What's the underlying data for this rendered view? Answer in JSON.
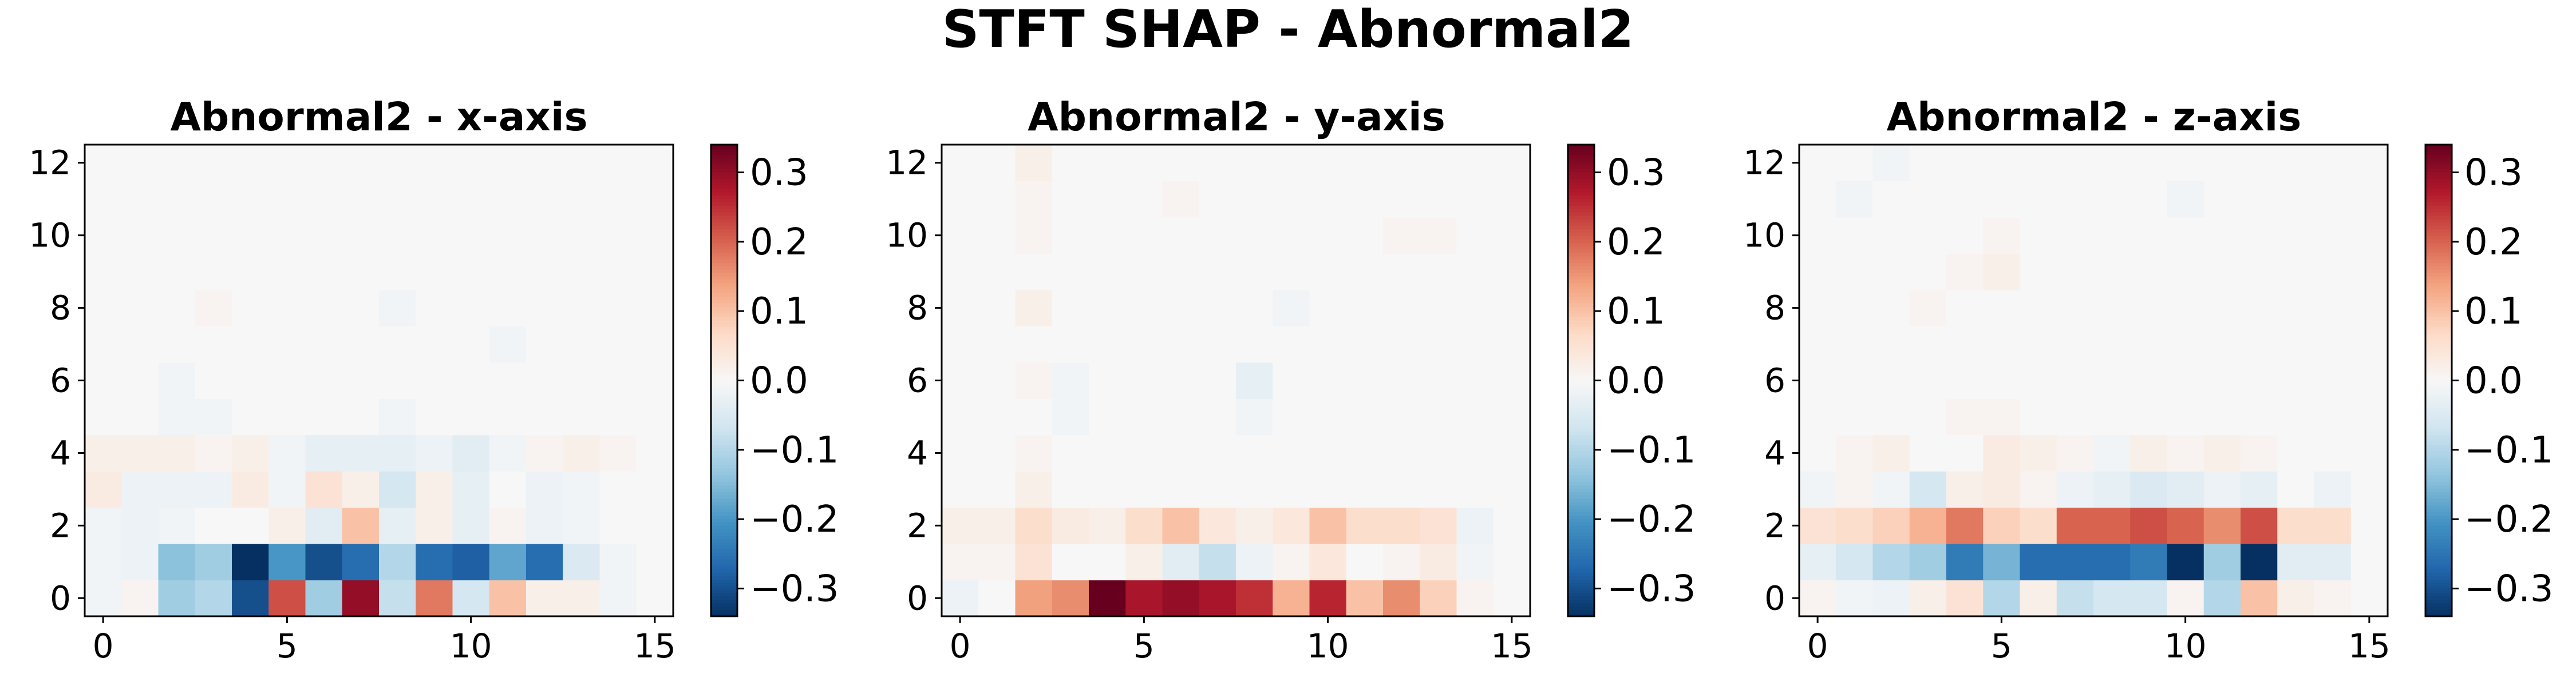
{
  "figure": {
    "title": "STFT SHAP - Abnormal2"
  },
  "colormap": {
    "name": "RdBu_r",
    "stops": [
      "#053061",
      "#2166ac",
      "#4393c3",
      "#92c5de",
      "#d1e5f0",
      "#f7f7f7",
      "#fddbc7",
      "#f4a582",
      "#d6604d",
      "#b2182b",
      "#67001f"
    ]
  },
  "chart_data": [
    {
      "type": "heatmap",
      "title": "Abnormal2 - x-axis",
      "xlabel": "",
      "ylabel": "",
      "x_ticks": [
        0,
        5,
        10,
        15
      ],
      "y_ticks": [
        0,
        2,
        4,
        6,
        8,
        10,
        12
      ],
      "xlim": [
        -0.5,
        15.5
      ],
      "ylim": [
        -0.5,
        12.5
      ],
      "colorbar": {
        "vmin": -0.34,
        "vmax": 0.34,
        "ticks": [
          -0.3,
          -0.2,
          -0.1,
          0.0,
          0.1,
          0.2,
          0.3
        ],
        "tick_labels": [
          "−0.3",
          "−0.2",
          "−0.1",
          "0.0",
          "0.1",
          "0.2",
          "0.3"
        ]
      },
      "values": [
        [
          -0.01,
          0.01,
          -0.12,
          -0.1,
          -0.3,
          0.22,
          -0.12,
          0.3,
          -0.08,
          0.18,
          -0.06,
          0.1,
          0.02,
          0.02,
          -0.01,
          0.0
        ],
        [
          -0.01,
          -0.02,
          -0.14,
          -0.12,
          -0.34,
          -0.2,
          -0.3,
          -0.26,
          -0.1,
          -0.26,
          -0.28,
          -0.18,
          -0.26,
          -0.05,
          -0.01,
          0.0
        ],
        [
          -0.01,
          -0.02,
          -0.01,
          0.0,
          0.0,
          0.02,
          -0.04,
          0.1,
          -0.03,
          0.02,
          -0.03,
          0.01,
          -0.02,
          -0.01,
          0.0,
          0.0
        ],
        [
          0.03,
          -0.02,
          -0.02,
          -0.02,
          0.03,
          -0.01,
          0.05,
          0.02,
          -0.06,
          0.02,
          -0.03,
          0.0,
          -0.02,
          -0.01,
          0.0,
          0.0
        ],
        [
          0.02,
          0.02,
          0.02,
          0.01,
          0.02,
          -0.01,
          -0.03,
          -0.03,
          -0.03,
          -0.02,
          -0.04,
          -0.01,
          0.01,
          0.02,
          0.01,
          0.0
        ],
        [
          0.0,
          0.0,
          -0.01,
          -0.01,
          0.0,
          0.0,
          0.0,
          0.0,
          -0.01,
          0.0,
          0.0,
          0.0,
          0.0,
          0.0,
          0.0,
          0.0
        ],
        [
          0.0,
          0.0,
          -0.01,
          0.0,
          0.0,
          0.0,
          0.0,
          0.0,
          0.0,
          0.0,
          0.0,
          0.0,
          0.0,
          0.0,
          0.0,
          0.0
        ],
        [
          0.0,
          0.0,
          0.0,
          0.0,
          0.0,
          0.0,
          0.0,
          0.0,
          0.0,
          0.0,
          0.0,
          -0.01,
          0.0,
          0.0,
          0.0,
          0.0
        ],
        [
          0.0,
          0.0,
          0.0,
          0.01,
          0.0,
          0.0,
          0.0,
          0.0,
          -0.01,
          0.0,
          0.0,
          0.0,
          0.0,
          0.0,
          0.0,
          0.0
        ],
        [
          0.0,
          0.0,
          0.0,
          0.0,
          0.0,
          0.0,
          0.0,
          0.0,
          0.0,
          0.0,
          0.0,
          0.0,
          0.0,
          0.0,
          0.0,
          0.0
        ],
        [
          0.0,
          0.0,
          0.0,
          0.0,
          0.0,
          0.0,
          0.0,
          0.0,
          0.0,
          0.0,
          0.0,
          0.0,
          0.0,
          0.0,
          0.0,
          0.0
        ],
        [
          0.0,
          0.0,
          0.0,
          0.0,
          0.0,
          0.0,
          0.0,
          0.0,
          0.0,
          0.0,
          0.0,
          0.0,
          0.0,
          0.0,
          0.0,
          0.0
        ],
        [
          0.0,
          0.0,
          0.0,
          0.0,
          0.0,
          0.0,
          0.0,
          0.0,
          0.0,
          0.0,
          0.0,
          0.0,
          0.0,
          0.0,
          0.0,
          0.0
        ]
      ]
    },
    {
      "type": "heatmap",
      "title": "Abnormal2 - y-axis",
      "xlabel": "",
      "ylabel": "",
      "x_ticks": [
        0,
        5,
        10,
        15
      ],
      "y_ticks": [
        0,
        2,
        4,
        6,
        8,
        10,
        12
      ],
      "xlim": [
        -0.5,
        15.5
      ],
      "ylim": [
        -0.5,
        12.5
      ],
      "colorbar": {
        "vmin": -0.34,
        "vmax": 0.34,
        "ticks": [
          -0.3,
          -0.2,
          -0.1,
          0.0,
          0.1,
          0.2,
          0.3
        ],
        "tick_labels": [
          "−0.3",
          "−0.2",
          "−0.1",
          "0.0",
          "0.1",
          "0.2",
          "0.3"
        ]
      },
      "values": [
        [
          -0.02,
          0.0,
          0.14,
          0.16,
          0.34,
          0.28,
          0.3,
          0.28,
          0.25,
          0.12,
          0.26,
          0.1,
          0.16,
          0.08,
          0.01,
          0.0
        ],
        [
          0.01,
          0.01,
          0.05,
          0.0,
          0.0,
          0.02,
          -0.04,
          -0.08,
          -0.02,
          0.01,
          0.04,
          0.0,
          0.01,
          0.03,
          -0.01,
          0.0
        ],
        [
          0.02,
          0.02,
          0.06,
          0.03,
          0.02,
          0.06,
          0.1,
          0.04,
          0.02,
          0.04,
          0.1,
          0.06,
          0.06,
          0.05,
          -0.02,
          0.0
        ],
        [
          0.0,
          0.0,
          0.02,
          0.0,
          0.0,
          0.0,
          0.0,
          0.0,
          0.0,
          0.0,
          0.0,
          0.0,
          0.0,
          0.0,
          0.0,
          0.0
        ],
        [
          0.0,
          0.0,
          0.01,
          0.0,
          0.0,
          0.0,
          0.0,
          0.0,
          0.0,
          0.0,
          0.0,
          0.0,
          0.0,
          0.0,
          0.0,
          0.0
        ],
        [
          0.0,
          0.0,
          0.0,
          -0.01,
          0.0,
          0.0,
          0.0,
          0.0,
          -0.01,
          0.0,
          0.0,
          0.0,
          0.0,
          0.0,
          0.0,
          0.0
        ],
        [
          0.0,
          0.0,
          0.01,
          -0.01,
          0.0,
          0.0,
          0.0,
          0.0,
          -0.03,
          0.0,
          0.0,
          0.0,
          0.0,
          0.0,
          0.0,
          0.0
        ],
        [
          0.0,
          0.0,
          0.0,
          0.0,
          0.0,
          0.0,
          0.0,
          0.0,
          0.0,
          0.0,
          0.0,
          0.0,
          0.0,
          0.0,
          0.0,
          0.0
        ],
        [
          0.0,
          0.0,
          0.02,
          0.0,
          0.0,
          0.0,
          0.0,
          0.0,
          0.0,
          -0.01,
          0.0,
          0.0,
          0.0,
          0.0,
          0.0,
          0.0
        ],
        [
          0.0,
          0.0,
          0.0,
          0.0,
          0.0,
          0.0,
          0.0,
          0.0,
          0.0,
          0.0,
          0.0,
          0.0,
          0.0,
          0.0,
          0.0,
          0.0
        ],
        [
          0.0,
          0.0,
          0.01,
          0.0,
          0.0,
          0.0,
          0.0,
          0.0,
          0.0,
          0.0,
          0.0,
          0.0,
          0.01,
          0.01,
          0.0,
          0.0
        ],
        [
          0.0,
          0.0,
          0.01,
          0.0,
          0.0,
          0.0,
          0.01,
          0.0,
          0.0,
          0.0,
          0.0,
          0.0,
          0.0,
          0.0,
          0.0,
          0.0
        ],
        [
          0.0,
          0.0,
          0.02,
          0.0,
          0.0,
          0.0,
          0.0,
          0.0,
          0.0,
          0.0,
          0.0,
          0.0,
          0.0,
          0.0,
          0.0,
          0.0
        ]
      ]
    },
    {
      "type": "heatmap",
      "title": "Abnormal2 - z-axis",
      "xlabel": "",
      "ylabel": "",
      "x_ticks": [
        0,
        5,
        10,
        15
      ],
      "y_ticks": [
        0,
        2,
        4,
        6,
        8,
        10,
        12
      ],
      "xlim": [
        -0.5,
        15.5
      ],
      "ylim": [
        -0.5,
        12.5
      ],
      "colorbar": {
        "vmin": -0.34,
        "vmax": 0.34,
        "ticks": [
          -0.3,
          -0.2,
          -0.1,
          0.0,
          0.1,
          0.2,
          0.3
        ],
        "tick_labels": [
          "−0.3",
          "−0.2",
          "−0.1",
          "0.0",
          "0.1",
          "0.2",
          "0.3"
        ]
      },
      "values": [
        [
          0.01,
          -0.01,
          -0.02,
          0.02,
          0.05,
          -0.1,
          0.02,
          -0.08,
          -0.06,
          -0.06,
          0.01,
          -0.1,
          0.1,
          0.02,
          0.01,
          0.0
        ],
        [
          -0.03,
          -0.06,
          -0.1,
          -0.12,
          -0.24,
          -0.16,
          -0.26,
          -0.26,
          -0.26,
          -0.24,
          -0.34,
          -0.12,
          -0.34,
          -0.04,
          -0.04,
          0.0
        ],
        [
          0.05,
          0.06,
          0.08,
          0.12,
          0.18,
          0.08,
          0.06,
          0.2,
          0.2,
          0.22,
          0.2,
          0.16,
          0.22,
          0.06,
          0.06,
          0.0
        ],
        [
          -0.01,
          0.01,
          -0.01,
          -0.06,
          0.02,
          0.03,
          0.01,
          -0.02,
          -0.03,
          -0.05,
          -0.04,
          -0.02,
          -0.03,
          0.0,
          -0.02,
          0.0
        ],
        [
          0.0,
          0.01,
          0.02,
          0.0,
          0.0,
          0.03,
          0.02,
          0.01,
          -0.01,
          0.02,
          0.01,
          0.02,
          0.01,
          0.0,
          0.0,
          0.0
        ],
        [
          0.0,
          0.0,
          0.0,
          0.0,
          0.01,
          0.01,
          0.0,
          0.0,
          0.0,
          0.0,
          0.0,
          0.0,
          0.0,
          0.0,
          0.0,
          0.0
        ],
        [
          0.0,
          0.0,
          0.0,
          0.0,
          0.0,
          0.0,
          0.0,
          0.0,
          0.0,
          0.0,
          0.0,
          0.0,
          0.0,
          0.0,
          0.0,
          0.0
        ],
        [
          0.0,
          0.0,
          0.0,
          0.0,
          0.0,
          0.0,
          0.0,
          0.0,
          0.0,
          0.0,
          0.0,
          0.0,
          0.0,
          0.0,
          0.0,
          0.0
        ],
        [
          0.0,
          0.0,
          0.0,
          0.01,
          0.0,
          0.0,
          0.0,
          0.0,
          0.0,
          0.0,
          0.0,
          0.0,
          0.0,
          0.0,
          0.0,
          0.0
        ],
        [
          0.0,
          0.0,
          0.0,
          0.0,
          0.01,
          0.02,
          0.0,
          0.0,
          0.0,
          0.0,
          0.0,
          0.0,
          0.0,
          0.0,
          0.0,
          0.0
        ],
        [
          0.0,
          0.0,
          0.0,
          0.0,
          0.0,
          0.01,
          0.0,
          0.0,
          0.0,
          0.0,
          0.0,
          0.0,
          0.0,
          0.0,
          0.0,
          0.0
        ],
        [
          0.0,
          -0.01,
          0.0,
          0.0,
          0.0,
          0.0,
          0.0,
          0.0,
          0.0,
          0.0,
          -0.01,
          0.0,
          0.0,
          0.0,
          0.0,
          0.0
        ],
        [
          0.0,
          0.0,
          -0.01,
          0.0,
          0.0,
          0.0,
          0.0,
          0.0,
          0.0,
          0.0,
          0.0,
          0.0,
          0.0,
          0.0,
          0.0,
          0.0
        ]
      ]
    }
  ]
}
